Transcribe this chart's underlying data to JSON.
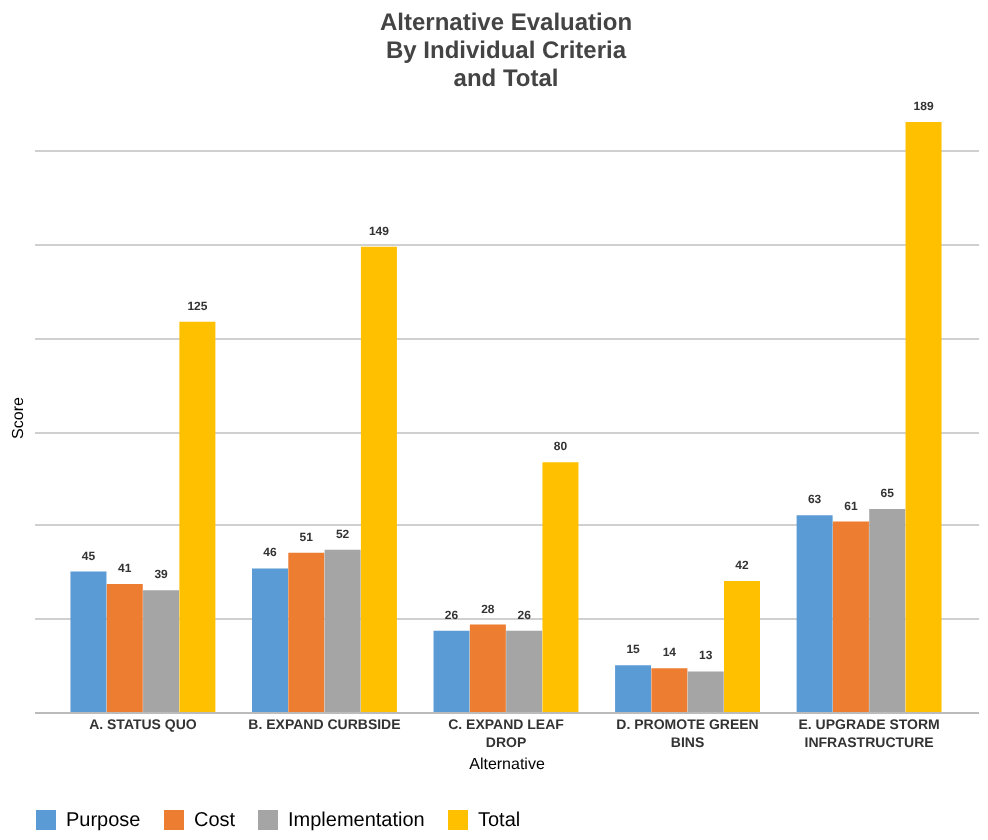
{
  "chart_data": {
    "type": "bar",
    "title": "Alternative Evaluation By Individual Criteria and Total",
    "xlabel": "Alternative",
    "ylabel": "Score",
    "categories": [
      "A. STATUS QUO",
      "B. EXPAND CURBSIDE",
      "C. EXPAND LEAF DROP",
      "D. PROMOTE GREEN BINS",
      "E. UPGRADE STORM INFRASTRUCTURE"
    ],
    "series": [
      {
        "name": "Purpose",
        "color": "#5b9bd5",
        "values": [
          45,
          46,
          26,
          15,
          63
        ]
      },
      {
        "name": "Cost",
        "color": "#ed7d31",
        "values": [
          41,
          51,
          28,
          14,
          61
        ]
      },
      {
        "name": "Implementation",
        "color": "#a5a5a5",
        "values": [
          39,
          52,
          26,
          13,
          65
        ]
      },
      {
        "name": "Total",
        "color": "#ffc000",
        "values": [
          125,
          149,
          80,
          42,
          189
        ]
      }
    ],
    "yticks": [
      {
        "value": 0,
        "label": null
      },
      {
        "value": 30,
        "label": null
      },
      {
        "value": 60,
        "label": null
      },
      {
        "value": 90,
        "label": null
      },
      {
        "value": 120,
        "label": null
      },
      {
        "value": 150,
        "label": null
      },
      {
        "value": 180,
        "label": null
      }
    ],
    "tick_labels": "x",
    "grid": "y",
    "legend": "bottom",
    "data_labels": true
  }
}
